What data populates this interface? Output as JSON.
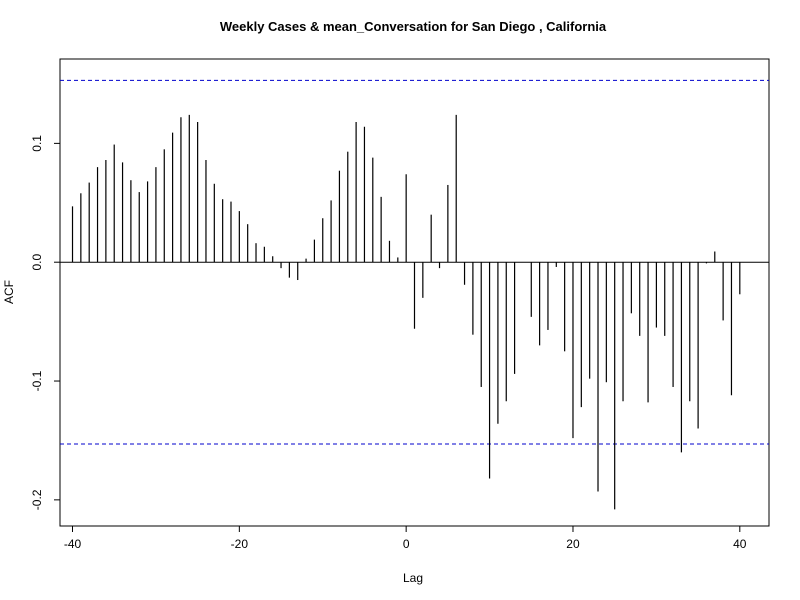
{
  "chart_data": {
    "type": "bar",
    "title": "Weekly Cases & mean_Conversation for San Diego , California",
    "xlabel": "Lag",
    "ylabel": "ACF",
    "xlim": [
      -41.5,
      43.5
    ],
    "ylim": [
      -0.222,
      0.171
    ],
    "x_ticks": [
      -40,
      -20,
      0,
      20,
      40
    ],
    "y_ticks": [
      0.1,
      0.0,
      -0.1,
      -0.2
    ],
    "y_tick_labels": [
      "0.1",
      "0.0",
      "-0.1",
      "-0.2"
    ],
    "confidence_bound": 0.153,
    "confidence_color": "#0000cc",
    "spike_color": "#000000",
    "grid": false,
    "lags": [
      -40,
      -39,
      -38,
      -37,
      -36,
      -35,
      -34,
      -33,
      -32,
      -31,
      -30,
      -29,
      -28,
      -27,
      -26,
      -25,
      -24,
      -23,
      -22,
      -21,
      -20,
      -19,
      -18,
      -17,
      -16,
      -15,
      -14,
      -13,
      -12,
      -11,
      -10,
      -9,
      -8,
      -7,
      -6,
      -5,
      -4,
      -3,
      -2,
      -1,
      0,
      1,
      2,
      3,
      4,
      5,
      6,
      7,
      8,
      9,
      10,
      11,
      12,
      13,
      14,
      15,
      16,
      17,
      18,
      19,
      20,
      21,
      22,
      23,
      24,
      25,
      26,
      27,
      28,
      29,
      30,
      31,
      32,
      33,
      34,
      35,
      36,
      37,
      38,
      39,
      40
    ],
    "values": [
      0.047,
      0.058,
      0.067,
      0.08,
      0.086,
      0.099,
      0.084,
      0.069,
      0.059,
      0.068,
      0.08,
      0.095,
      0.109,
      0.122,
      0.124,
      0.118,
      0.086,
      0.066,
      0.053,
      0.051,
      0.043,
      0.032,
      0.016,
      0.013,
      0.005,
      -0.005,
      -0.013,
      -0.015,
      0.003,
      0.019,
      0.037,
      0.052,
      0.077,
      0.093,
      0.118,
      0.114,
      0.088,
      0.055,
      0.018,
      0.004,
      0.074,
      -0.056,
      -0.03,
      0.04,
      -0.005,
      0.065,
      0.124,
      -0.019,
      -0.061,
      -0.105,
      -0.182,
      -0.136,
      -0.117,
      -0.094,
      0.0,
      -0.046,
      -0.07,
      -0.057,
      -0.004,
      -0.075,
      -0.148,
      -0.122,
      -0.098,
      -0.193,
      -0.101,
      -0.208,
      -0.117,
      -0.043,
      -0.062,
      -0.118,
      -0.055,
      -0.062,
      -0.105,
      -0.16,
      -0.117,
      -0.14,
      -0.001,
      0.009,
      -0.049,
      -0.112,
      -0.027
    ]
  }
}
